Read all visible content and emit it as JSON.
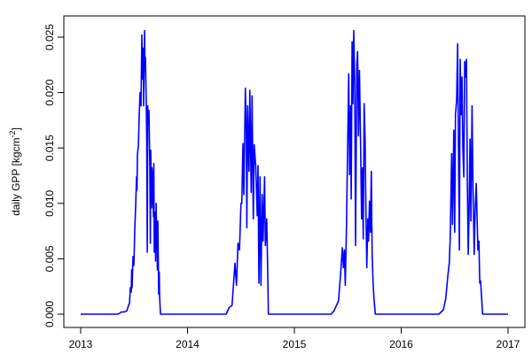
{
  "chart_data": {
    "type": "line",
    "title": "",
    "xlabel": "",
    "ylabel": "daily GPP [kgcm",
    "ylabel_superscript": "-2",
    "ylabel_close": "]",
    "xlim": [
      2013,
      2017
    ],
    "ylim": [
      0,
      0.025
    ],
    "x_ticks": [
      "2013",
      "2014",
      "2015",
      "2016",
      "2017"
    ],
    "y_ticks": [
      "0.000",
      "0.005",
      "0.010",
      "0.015",
      "0.020",
      "0.025"
    ],
    "grid": false,
    "line_color": "#0000ff",
    "series": [
      {
        "points": [
          [
            2013.0,
            0
          ],
          [
            2013.349,
            0
          ],
          [
            2013.382,
            0.0002
          ],
          [
            2013.407,
            0.0002
          ],
          [
            2013.432,
            0.0003
          ],
          [
            2013.448,
            0.0008
          ],
          [
            2013.457,
            0.001
          ],
          [
            2013.465,
            0.0024
          ],
          [
            2013.473,
            0.002
          ],
          [
            2013.477,
            0.004
          ],
          [
            2013.481,
            0.0024
          ],
          [
            2013.49,
            0.0052
          ],
          [
            2013.498,
            0.0044
          ],
          [
            2013.506,
            0.0076
          ],
          [
            2013.515,
            0.01
          ],
          [
            2013.523,
            0.0124
          ],
          [
            2013.527,
            0.0112
          ],
          [
            2013.531,
            0.0144
          ],
          [
            2013.54,
            0.0152
          ],
          [
            2013.548,
            0.018
          ],
          [
            2013.556,
            0.02
          ],
          [
            2013.564,
            0.0188
          ],
          [
            2013.573,
            0.0252
          ],
          [
            2013.581,
            0.0212
          ],
          [
            2013.585,
            0.024
          ],
          [
            2013.589,
            0.0188
          ],
          [
            2013.598,
            0.0256
          ],
          [
            2013.602,
            0.022
          ],
          [
            2013.606,
            0.0232
          ],
          [
            2013.614,
            0.0188
          ],
          [
            2013.618,
            0.0156
          ],
          [
            2013.623,
            0.0056
          ],
          [
            2013.627,
            0.0188
          ],
          [
            2013.631,
            0.0172
          ],
          [
            2013.639,
            0.0184
          ],
          [
            2013.647,
            0.0132
          ],
          [
            2013.652,
            0.0064
          ],
          [
            2013.656,
            0.0148
          ],
          [
            2013.664,
            0.0096
          ],
          [
            2013.668,
            0.0132
          ],
          [
            2013.672,
            0.0124
          ],
          [
            2013.681,
            0.0088
          ],
          [
            2013.685,
            0.0136
          ],
          [
            2013.689,
            0.0056
          ],
          [
            2013.697,
            0.0092
          ],
          [
            2013.701,
            0.0048
          ],
          [
            2013.706,
            0.01
          ],
          [
            2013.71,
            0.0072
          ],
          [
            2013.714,
            0.008
          ],
          [
            2013.718,
            0.004
          ],
          [
            2013.722,
            0.0084
          ],
          [
            2013.73,
            0.0018
          ],
          [
            2013.735,
            0.0038
          ],
          [
            2013.739,
            0.0016
          ],
          [
            2013.747,
            0
          ],
          [
            2014.361,
            0
          ],
          [
            2014.389,
            0.0006
          ],
          [
            2014.417,
            0.0008
          ],
          [
            2014.444,
            0.0046
          ],
          [
            2014.458,
            0.0026
          ],
          [
            2014.472,
            0.0064
          ],
          [
            2014.486,
            0.0058
          ],
          [
            2014.5,
            0.01
          ],
          [
            2014.508,
            0.01
          ],
          [
            2014.519,
            0.0154
          ],
          [
            2014.527,
            0.0108
          ],
          [
            2014.536,
            0.0169
          ],
          [
            2014.541,
            0.0204
          ],
          [
            2014.55,
            0.0164
          ],
          [
            2014.555,
            0.0078
          ],
          [
            2014.563,
            0.0188
          ],
          [
            2014.575,
            0.0129
          ],
          [
            2014.583,
            0.0202
          ],
          [
            2014.591,
            0.0145
          ],
          [
            2014.596,
            0.011
          ],
          [
            2014.604,
            0.0197
          ],
          [
            2014.616,
            0.0086
          ],
          [
            2014.624,
            0.0153
          ],
          [
            2014.638,
            0.0134
          ],
          [
            2014.652,
            0.0089
          ],
          [
            2014.66,
            0.0134
          ],
          [
            2014.668,
            0.0028
          ],
          [
            2014.679,
            0.0124
          ],
          [
            2014.687,
            0.0026
          ],
          [
            2014.699,
            0.0108
          ],
          [
            2014.707,
            0.0066
          ],
          [
            2014.721,
            0.0124
          ],
          [
            2014.729,
            0.0062
          ],
          [
            2014.741,
            0.0086
          ],
          [
            2014.749,
            0.0044
          ],
          [
            2014.757,
            0
          ],
          [
            2015.343,
            0
          ],
          [
            2015.371,
            0.0003
          ],
          [
            2015.413,
            0.0012
          ],
          [
            2015.432,
            0.0036
          ],
          [
            2015.449,
            0.006
          ],
          [
            2015.459,
            0.0042
          ],
          [
            2015.468,
            0.0058
          ],
          [
            2015.476,
            0.0026
          ],
          [
            2015.488,
            0.0081
          ],
          [
            2015.498,
            0.0148
          ],
          [
            2015.509,
            0.0217
          ],
          [
            2015.517,
            0.0126
          ],
          [
            2015.526,
            0.0188
          ],
          [
            2015.532,
            0.0104
          ],
          [
            2015.54,
            0.0246
          ],
          [
            2015.548,
            0.019
          ],
          [
            2015.556,
            0.0256
          ],
          [
            2015.565,
            0.0206
          ],
          [
            2015.573,
            0.0062
          ],
          [
            2015.584,
            0.0225
          ],
          [
            2015.592,
            0.0237
          ],
          [
            2015.6,
            0.0161
          ],
          [
            2015.609,
            0.022
          ],
          [
            2015.62,
            0.0153
          ],
          [
            2015.629,
            0.0086
          ],
          [
            2015.637,
            0.0132
          ],
          [
            2015.645,
            0.0068
          ],
          [
            2015.653,
            0.019
          ],
          [
            2015.662,
            0.0156
          ],
          [
            2015.67,
            0.0092
          ],
          [
            2015.678,
            0.0042
          ],
          [
            2015.687,
            0.0086
          ],
          [
            2015.695,
            0.0066
          ],
          [
            2015.703,
            0.0102
          ],
          [
            2015.712,
            0.0074
          ],
          [
            2015.72,
            0.0129
          ],
          [
            2015.728,
            0.0054
          ],
          [
            2015.737,
            0.0028
          ],
          [
            2015.745,
            0.0014
          ],
          [
            2015.758,
            0
          ],
          [
            2016.353,
            0
          ],
          [
            2016.395,
            0.0004
          ],
          [
            2016.417,
            0.0014
          ],
          [
            2016.436,
            0.0034
          ],
          [
            2016.45,
            0.0046
          ],
          [
            2016.459,
            0.007
          ],
          [
            2016.472,
            0.0145
          ],
          [
            2016.48,
            0.0081
          ],
          [
            2016.492,
            0.0166
          ],
          [
            2016.5,
            0.0074
          ],
          [
            2016.508,
            0.018
          ],
          [
            2016.519,
            0.0193
          ],
          [
            2016.528,
            0.0244
          ],
          [
            2016.536,
            0.015
          ],
          [
            2016.544,
            0.0058
          ],
          [
            2016.552,
            0.023
          ],
          [
            2016.561,
            0.018
          ],
          [
            2016.569,
            0.0214
          ],
          [
            2016.577,
            0.015
          ],
          [
            2016.586,
            0.0124
          ],
          [
            2016.594,
            0.0228
          ],
          [
            2016.602,
            0.0214
          ],
          [
            2016.611,
            0.023
          ],
          [
            2016.619,
            0.0118
          ],
          [
            2016.627,
            0.0054
          ],
          [
            2016.635,
            0.0092
          ],
          [
            2016.644,
            0.0158
          ],
          [
            2016.652,
            0.0084
          ],
          [
            2016.663,
            0.0188
          ],
          [
            2016.671,
            0.0118
          ],
          [
            2016.683,
            0.0054
          ],
          [
            2016.691,
            0.0092
          ],
          [
            2016.702,
            0.0118
          ],
          [
            2016.71,
            0.0086
          ],
          [
            2016.718,
            0.0058
          ],
          [
            2016.727,
            0.0066
          ],
          [
            2016.735,
            0.0028
          ],
          [
            2016.743,
            0.003
          ],
          [
            2016.754,
            0.0012
          ],
          [
            2016.762,
            0
          ],
          [
            2017.0,
            0
          ]
        ]
      }
    ]
  }
}
